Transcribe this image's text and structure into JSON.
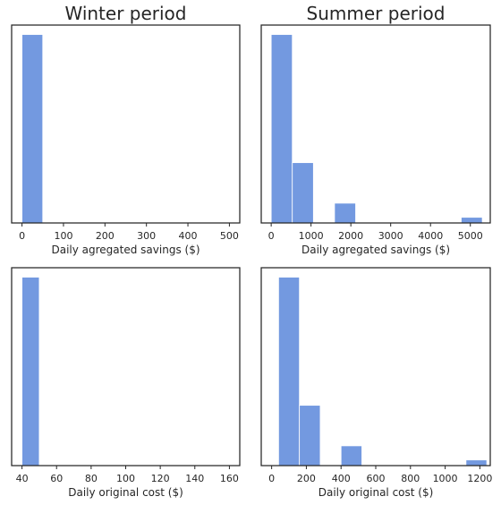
{
  "chart_data": [
    {
      "type": "bar",
      "title": "Winter period",
      "xlabel": "Daily agregated savings ($)",
      "xlim": [
        -25,
        525
      ],
      "xticks": [
        0,
        100,
        200,
        300,
        400,
        500
      ],
      "bins": [
        [
          0,
          50
        ]
      ],
      "values": [
        1
      ],
      "ylim": [
        0,
        1.05
      ],
      "y_ticks_shown": false,
      "color": "#7399e0"
    },
    {
      "type": "bar",
      "title": "Summer period",
      "xlabel": "Daily agregated savings ($)",
      "xlim": [
        -250,
        5500
      ],
      "xticks": [
        0,
        1000,
        2000,
        3000,
        4000,
        5000
      ],
      "bins": [
        [
          0,
          530
        ],
        [
          530,
          1060
        ],
        [
          1060,
          1590
        ],
        [
          1590,
          2120
        ],
        [
          2120,
          2650
        ],
        [
          2650,
          3180
        ],
        [
          3180,
          3710
        ],
        [
          3710,
          4240
        ],
        [
          4240,
          4770
        ],
        [
          4770,
          5300
        ]
      ],
      "values": [
        1.0,
        0.32,
        0,
        0.105,
        0,
        0,
        0,
        0,
        0,
        0.03
      ],
      "ylim": [
        0,
        1.05
      ],
      "y_ticks_shown": false,
      "color": "#7399e0"
    },
    {
      "type": "bar",
      "title": "",
      "xlabel": "Daily original cost ($)",
      "xlim": [
        34,
        166
      ],
      "xticks": [
        40,
        60,
        80,
        100,
        120,
        140,
        160
      ],
      "bins": [
        [
          40,
          50
        ]
      ],
      "values": [
        1
      ],
      "ylim": [
        0,
        1.05
      ],
      "y_ticks_shown": false,
      "color": "#7399e0"
    },
    {
      "type": "bar",
      "title": "",
      "xlabel": "Daily original cost ($)",
      "xlim": [
        -60,
        1260
      ],
      "xticks": [
        0,
        200,
        400,
        600,
        800,
        1000,
        1200
      ],
      "bins": [
        [
          40,
          160
        ],
        [
          160,
          280
        ],
        [
          280,
          400
        ],
        [
          400,
          520
        ],
        [
          520,
          640
        ],
        [
          640,
          760
        ],
        [
          760,
          880
        ],
        [
          880,
          1000
        ],
        [
          1000,
          1120
        ],
        [
          1120,
          1240
        ]
      ],
      "values": [
        1.0,
        0.32,
        0,
        0.105,
        0,
        0,
        0,
        0,
        0,
        0.03
      ],
      "ylim": [
        0,
        1.05
      ],
      "y_ticks_shown": false,
      "color": "#7399e0"
    }
  ]
}
